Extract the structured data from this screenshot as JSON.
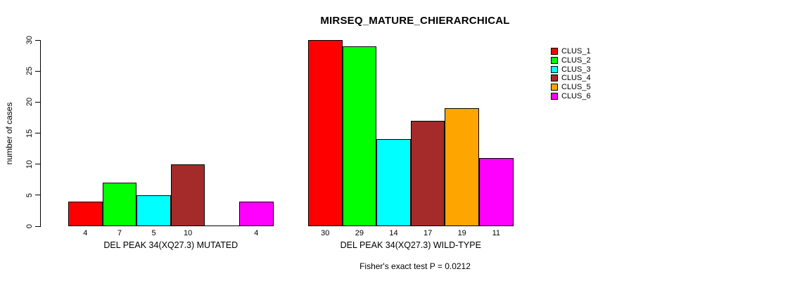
{
  "chart_data": {
    "type": "bar",
    "title": "MIRSEQ_MATURE_CHIERARCHICAL",
    "ylabel": "number of cases",
    "xlabel": "",
    "ylim": [
      0,
      30
    ],
    "yticks": [
      0,
      5,
      10,
      15,
      20,
      25,
      30
    ],
    "grid": false,
    "legend_position": "top-right",
    "categories": [
      "DEL PEAK 34(XQ27.3) MUTATED",
      "DEL PEAK 34(XQ27.3) WILD-TYPE"
    ],
    "series": [
      {
        "name": "CLUS_1",
        "color": "#FF0000",
        "values": [
          4,
          30
        ]
      },
      {
        "name": "CLUS_2",
        "color": "#00FF00",
        "values": [
          7,
          29
        ]
      },
      {
        "name": "CLUS_3",
        "color": "#00FFFF",
        "values": [
          5,
          14
        ]
      },
      {
        "name": "CLUS_4",
        "color": "#A52A2A",
        "values": [
          10,
          17
        ]
      },
      {
        "name": "CLUS_5",
        "color": "#FFA500",
        "values": [
          0,
          19
        ]
      },
      {
        "name": "CLUS_6",
        "color": "#FF00FF",
        "values": [
          4,
          11
        ]
      }
    ],
    "bar_labels": [
      [
        "4",
        "7",
        "5",
        "10",
        "",
        "4"
      ],
      [
        "30",
        "29",
        "14",
        "17",
        "19",
        "11"
      ]
    ],
    "annotation": "Fisher's exact test P = 0.0212",
    "axis_color": "#000000",
    "background_color": "#FFFFFF"
  }
}
